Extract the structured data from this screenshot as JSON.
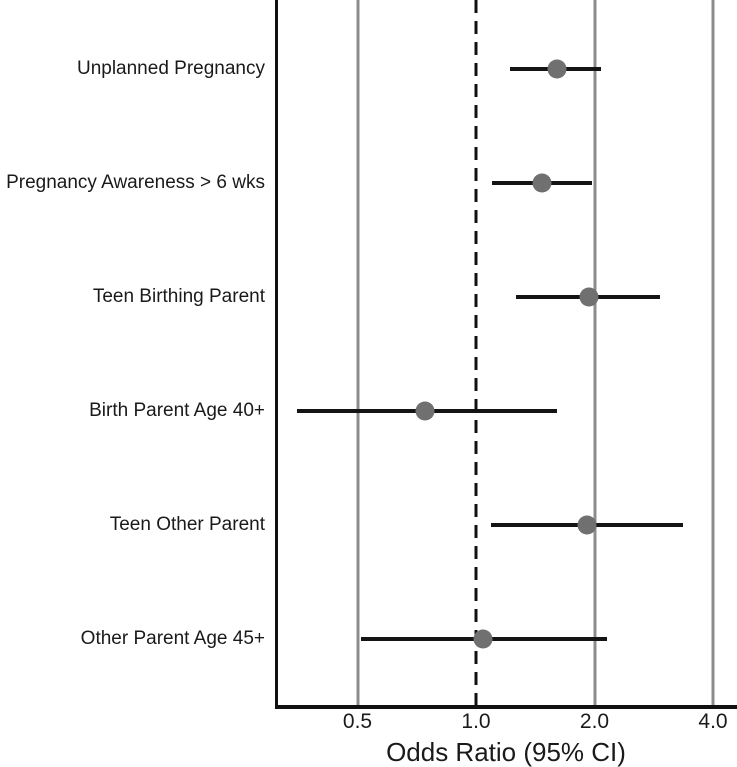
{
  "chart_data": {
    "type": "scatter",
    "subtype": "forest-plot",
    "title": "",
    "xlabel": "Odds Ratio (95% CI)",
    "ylabel": "",
    "x_scale": "log2",
    "x_ticks": [
      0.5,
      1.0,
      2.0,
      4.0
    ],
    "x_tick_labels": [
      "0.5",
      "1.0",
      "2.0",
      "4.0"
    ],
    "reference_line_x": 1.0,
    "x_range": [
      0.31,
      4.6
    ],
    "grid": "vertical-gridlines-at-ticks",
    "legend": "none",
    "categories": [
      "Unplanned Pregnancy",
      "Pregnancy Awareness > 6 wks",
      "Teen Birthing Parent",
      "Birth Parent Age 40+",
      "Teen Other Parent",
      "Other Parent Age 45+"
    ],
    "series": [
      {
        "label": "Unplanned Pregnancy",
        "odds_ratio": 1.61,
        "ci_low": 1.22,
        "ci_high": 2.08
      },
      {
        "label": "Pregnancy Awareness > 6 wks",
        "odds_ratio": 1.47,
        "ci_low": 1.1,
        "ci_high": 1.97
      },
      {
        "label": "Teen Birthing Parent",
        "odds_ratio": 1.94,
        "ci_low": 1.26,
        "ci_high": 2.93
      },
      {
        "label": "Birth Parent Age 40+",
        "odds_ratio": 0.74,
        "ci_low": 0.35,
        "ci_high": 1.61
      },
      {
        "label": "Teen Other Parent",
        "odds_ratio": 1.91,
        "ci_low": 1.09,
        "ci_high": 3.36
      },
      {
        "label": "Other Parent Age 45+",
        "odds_ratio": 1.04,
        "ci_low": 0.51,
        "ci_high": 2.15
      }
    ],
    "colors": {
      "marker": "#707070",
      "ci_line": "#141414",
      "gridline": "#8c8c8c",
      "reference_line": "#111111",
      "axis": "#111111",
      "text": "#1a1a1a",
      "background": "#ffffff"
    }
  }
}
